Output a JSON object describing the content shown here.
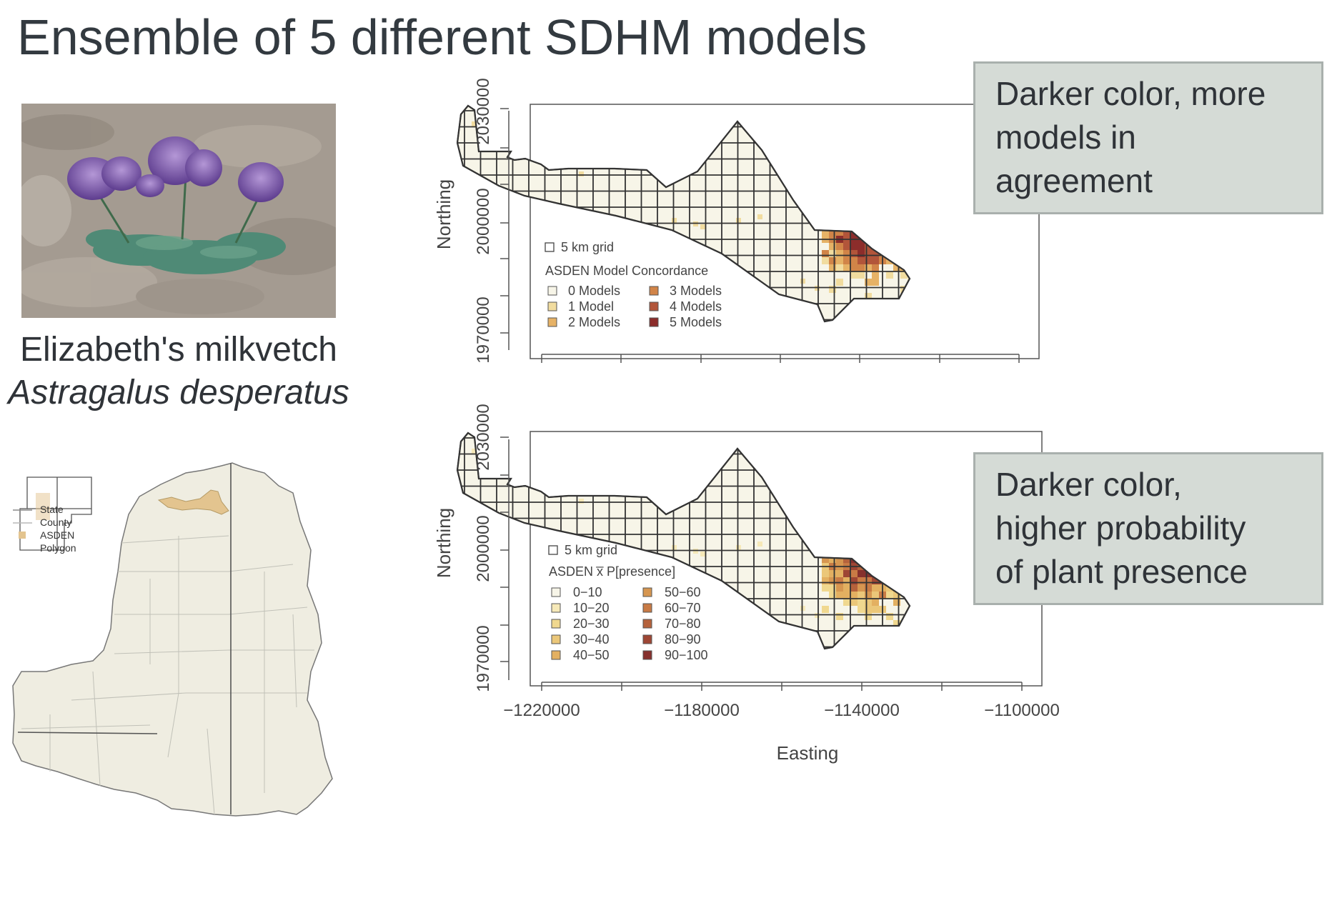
{
  "slide": {
    "title": "Ensemble of 5 different SDHM models",
    "species_common": "Elizabeth's milkvetch",
    "species_scientific": "Astragalus desperatus"
  },
  "range_map_legend": [
    {
      "label": "State",
      "symbol": "line",
      "color": "#8a8a8a"
    },
    {
      "label": "County",
      "symbol": "line",
      "color": "#b9b9b9"
    },
    {
      "label": "ASDEN",
      "symbol": "square",
      "color": "#e3c48f"
    },
    {
      "label": "Polygon",
      "symbol": "none",
      "color": ""
    }
  ],
  "axes": {
    "ylabel": "Northing",
    "xlabel": "Easting",
    "y_ticks_top": [
      "1970000",
      "2000000",
      "2030000"
    ],
    "y_ticks_bottom": [
      "1970000",
      "2000000",
      "2030000"
    ],
    "x_ticks": [
      "−1220000",
      "−1180000",
      "−1140000",
      "−1100000"
    ]
  },
  "callouts": {
    "top": "Darker color, more\nmodels in\nagreement",
    "bottom": "Darker color,\nhigher probability\nof plant presence"
  },
  "chart_data": [
    {
      "type": "heatmap",
      "title": "",
      "xlabel": "",
      "ylabel": "Northing",
      "grid_label": "5 km grid",
      "legend_title": "ASDEN Model Concordance",
      "legend_placement": "bottom-left",
      "legend": [
        {
          "label": "0 Models",
          "color": "#f7f5e8"
        },
        {
          "label": "1 Model",
          "color": "#f1dc9f"
        },
        {
          "label": "2 Models",
          "color": "#e6b266"
        },
        {
          "label": "3 Models",
          "color": "#d18448"
        },
        {
          "label": "4 Models",
          "color": "#b2553a"
        },
        {
          "label": "5 Models",
          "color": "#8c2d2b"
        }
      ]
    },
    {
      "type": "heatmap",
      "title": "",
      "xlabel": "Easting",
      "ylabel": "Northing",
      "grid_label": "5 km grid",
      "legend_title": "ASDEN x̅ P[presence]",
      "legend_placement": "bottom-left",
      "legend": [
        {
          "label": "0−10",
          "color": "#f7f5e8"
        },
        {
          "label": "10−20",
          "color": "#f6e9b8"
        },
        {
          "label": "20−30",
          "color": "#f0d88f"
        },
        {
          "label": "30−40",
          "color": "#ebc779"
        },
        {
          "label": "40−50",
          "color": "#e3b061"
        },
        {
          "label": "50−60",
          "color": "#d69650"
        },
        {
          "label": "60−70",
          "color": "#c87a45"
        },
        {
          "label": "70−80",
          "color": "#b5623c"
        },
        {
          "label": "80−90",
          "color": "#9e4634"
        },
        {
          "label": "90−100",
          "color": "#86302d"
        }
      ]
    }
  ]
}
